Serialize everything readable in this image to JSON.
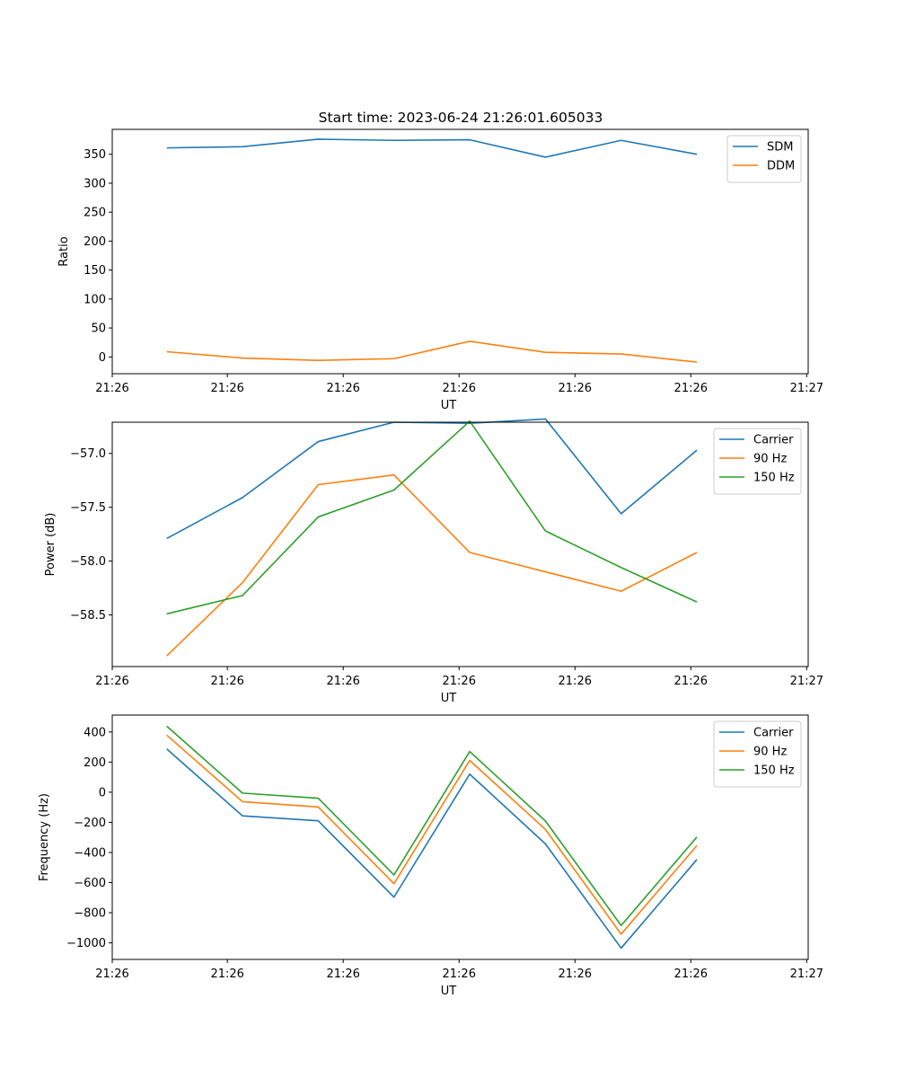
{
  "figure": {
    "title": "Start time: 2023-06-24 21:26:01.605033"
  },
  "colors": {
    "blue": "#1f77b4",
    "orange": "#ff7f0e",
    "green": "#2ca02c"
  },
  "chart_data": [
    {
      "type": "line",
      "title": "Start time: 2023-06-24 21:26:01.605033",
      "xlabel": "UT",
      "ylabel": "Ratio",
      "x": [
        0,
        1,
        2,
        3,
        4,
        5,
        6,
        7
      ],
      "xlim": [
        -0.72,
        8.47
      ],
      "xticks": [
        -0.72,
        0.8,
        2.33,
        3.86,
        5.39,
        6.92,
        8.45
      ],
      "xtick_labels": [
        "21:26",
        "21:26",
        "21:26",
        "21:26",
        "21:26",
        "21:26",
        "21:27"
      ],
      "ylim": [
        -29,
        393
      ],
      "yticks": [
        0,
        50,
        100,
        150,
        200,
        250,
        300,
        350
      ],
      "ytick_labels": [
        "0",
        "50",
        "100",
        "150",
        "200",
        "250",
        "300",
        "350"
      ],
      "legend": "top-right",
      "grid": false,
      "series": [
        {
          "name": "SDM",
          "color": "#1f77b4",
          "values": [
            361,
            363,
            376,
            374,
            375,
            345,
            374,
            350
          ]
        },
        {
          "name": "DDM",
          "color": "#ff7f0e",
          "values": [
            9,
            -2,
            -6,
            -3,
            27,
            8,
            5,
            -9
          ]
        }
      ]
    },
    {
      "type": "line",
      "title": "",
      "xlabel": "UT",
      "ylabel": "Power (dB)",
      "x": [
        0,
        1,
        2,
        3,
        4,
        5,
        6,
        7
      ],
      "xlim": [
        -0.72,
        8.47
      ],
      "xticks": [
        -0.72,
        0.8,
        2.33,
        3.86,
        5.39,
        6.92,
        8.45
      ],
      "xtick_labels": [
        "21:26",
        "21:26",
        "21:26",
        "21:26",
        "21:26",
        "21:26",
        "21:27"
      ],
      "ylim": [
        -58.98,
        -56.71
      ],
      "yticks": [
        -58.5,
        -58.0,
        -57.5,
        -57.0
      ],
      "ytick_labels": [
        "−58.5",
        "−58.0",
        "−57.5",
        "−57.0"
      ],
      "legend": "top-right",
      "grid": false,
      "series": [
        {
          "name": "Carrier",
          "color": "#1f77b4",
          "values": [
            -57.79,
            -57.41,
            -56.89,
            -56.71,
            -56.72,
            -56.68,
            -57.56,
            -56.97
          ]
        },
        {
          "name": "90 Hz",
          "color": "#ff7f0e",
          "values": [
            -58.88,
            -58.2,
            -57.29,
            -57.2,
            -57.92,
            -58.1,
            -58.28,
            -57.92
          ]
        },
        {
          "name": "150 Hz",
          "color": "#2ca02c",
          "values": [
            -58.49,
            -58.32,
            -57.59,
            -57.34,
            -56.7,
            -57.72,
            -58.06,
            -58.38
          ]
        }
      ]
    },
    {
      "type": "line",
      "title": "",
      "xlabel": "UT",
      "ylabel": "Frequency (Hz)",
      "x": [
        0,
        1,
        2,
        3,
        4,
        5,
        6,
        7
      ],
      "xlim": [
        -0.72,
        8.47
      ],
      "xticks": [
        -0.72,
        0.8,
        2.33,
        3.86,
        5.39,
        6.92,
        8.45
      ],
      "xtick_labels": [
        "21:26",
        "21:26",
        "21:26",
        "21:26",
        "21:26",
        "21:26",
        "21:27"
      ],
      "ylim": [
        -1110,
        512
      ],
      "yticks": [
        -1000,
        -800,
        -600,
        -400,
        -200,
        0,
        200,
        400
      ],
      "ytick_labels": [
        "−1000",
        "−800",
        "−600",
        "−400",
        "−200",
        "0",
        "200",
        "400"
      ],
      "legend": "top-right",
      "grid": false,
      "series": [
        {
          "name": "Carrier",
          "color": "#1f77b4",
          "values": [
            287,
            -157,
            -190,
            -697,
            120,
            -343,
            -1035,
            -447
          ]
        },
        {
          "name": "90 Hz",
          "color": "#ff7f0e",
          "values": [
            379,
            -63,
            -98,
            -607,
            211,
            -247,
            -942,
            -354
          ]
        },
        {
          "name": "150 Hz",
          "color": "#2ca02c",
          "values": [
            438,
            -6,
            -40,
            -549,
            270,
            -191,
            -885,
            -298
          ]
        }
      ]
    }
  ]
}
